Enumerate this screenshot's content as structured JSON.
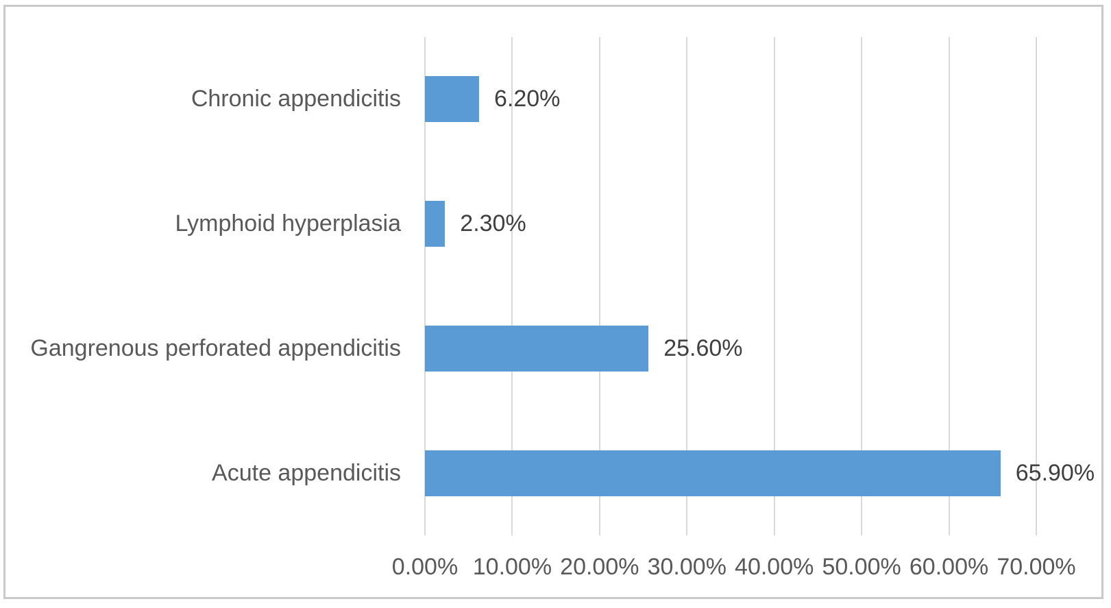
{
  "chart_data": {
    "type": "bar",
    "orientation": "horizontal",
    "title": "",
    "xlabel": "",
    "ylabel": "",
    "categories": [
      "Chronic appendicitis",
      "Lymphoid hyperplasia",
      "Gangrenous perforated appendicitis",
      "Acute appendicitis"
    ],
    "values": [
      6.2,
      2.3,
      25.6,
      65.9
    ],
    "data_labels": [
      "6.20%",
      "2.30%",
      "25.60%",
      "65.90%"
    ],
    "x_axis": {
      "min": 0,
      "max": 70,
      "step": 10,
      "tick_labels": [
        "0.00%",
        "10.00%",
        "20.00%",
        "30.00%",
        "40.00%",
        "50.00%",
        "60.00%",
        "70.00%"
      ]
    },
    "grid": {
      "vertical": true,
      "horizontal": false
    },
    "legend": "none",
    "colors": {
      "bar": "#5B9BD5",
      "gridline": "#D9D9D9",
      "category_label": "#595959",
      "tick_label": "#595959",
      "data_label": "#404040",
      "frame_border": "#C9C9C9",
      "background": "#FFFFFF"
    }
  }
}
